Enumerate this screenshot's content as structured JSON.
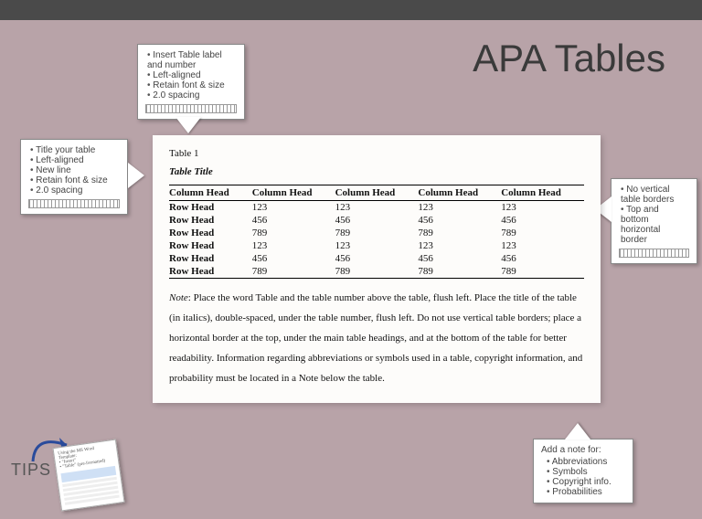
{
  "page": {
    "title": "APA Tables"
  },
  "callouts": {
    "top": {
      "items": [
        "Insert Table label and number",
        "Left-aligned",
        "Retain font & size",
        "2.0 spacing"
      ]
    },
    "left": {
      "items": [
        "Title your table",
        "Left-aligned",
        "New line",
        "Retain font & size",
        "2.0 spacing"
      ]
    },
    "right": {
      "items": [
        "No vertical table borders",
        "Top and bottom horizontal border"
      ]
    },
    "bottom": {
      "heading": "Add a note for:",
      "items": [
        "Abbreviations",
        "Symbols",
        "Copyright info.",
        "Probabilities"
      ]
    }
  },
  "table": {
    "label": "Table 1",
    "title": "Table Title",
    "columns": [
      "Column Head",
      "Column Head",
      "Column Head",
      "Column Head",
      "Column Head"
    ],
    "rows": [
      [
        "Row Head",
        "123",
        "123",
        "123",
        "123"
      ],
      [
        "Row Head",
        "456",
        "456",
        "456",
        "456"
      ],
      [
        "Row Head",
        "789",
        "789",
        "789",
        "789"
      ],
      [
        "Row Head",
        "123",
        "123",
        "123",
        "123"
      ],
      [
        "Row Head",
        "456",
        "456",
        "456",
        "456"
      ],
      [
        "Row Head",
        "789",
        "789",
        "789",
        "789"
      ]
    ]
  },
  "note": {
    "label": "Note",
    "text": ":  Place the word Table and the table number above the table, flush left. Place the title of the table (in italics), double-spaced, under the table number, flush left. Do not use vertical table borders; place a horizontal border at the top, under the main table headings, and at the bottom of the table for better readability. Information regarding abbreviations or symbols used in a table, copyright information, and probability must be located in a Note below the table."
  },
  "tips": {
    "label": "TIPS",
    "thumb_lines": [
      "Using the MS Word Template:",
      "• \"Insert\"",
      "• \"Table\" (pre-formatted)"
    ]
  },
  "colors": {
    "page_bg": "#b8a3a8",
    "topbar": "#4a4a4a",
    "title_text": "#3a3a3a",
    "paper_bg": "#fdfcfa",
    "arrow": "#2a4b9b"
  }
}
